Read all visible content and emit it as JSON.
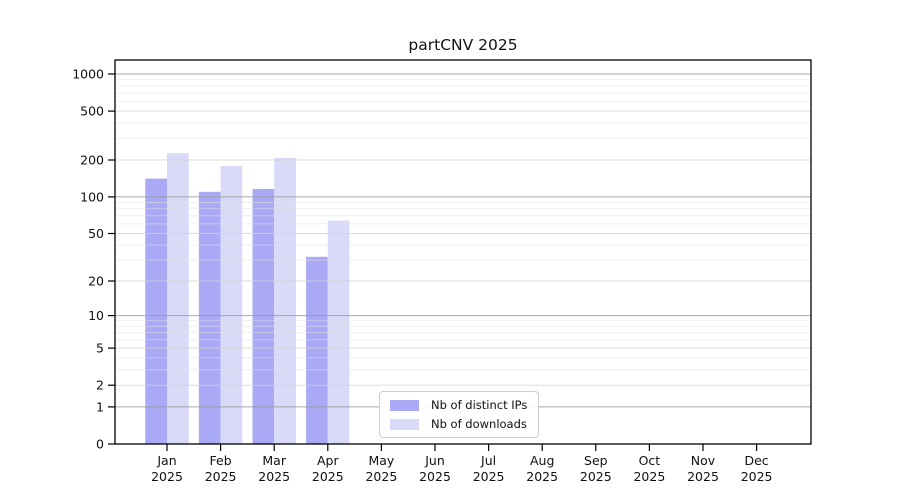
{
  "chart_data": {
    "type": "bar",
    "title": "partCNV 2025",
    "categories": [
      "Jan",
      "Feb",
      "Mar",
      "Apr",
      "May",
      "Jun",
      "Jul",
      "Aug",
      "Sep",
      "Oct",
      "Nov",
      "Dec"
    ],
    "x_year_label": "2025",
    "series": [
      {
        "name": "Nb of distinct IPs",
        "color": "#a9a9f6",
        "values": [
          141,
          110,
          116,
          32,
          null,
          null,
          null,
          null,
          null,
          null,
          null,
          null
        ]
      },
      {
        "name": "Nb of downloads",
        "color": "#d9d9f8",
        "values": [
          227,
          179,
          208,
          64,
          null,
          null,
          null,
          null,
          null,
          null,
          null,
          null
        ]
      }
    ],
    "y_ticks": [
      0,
      1,
      2,
      5,
      10,
      20,
      50,
      100,
      200,
      500,
      1000
    ],
    "y_scale": "log10(1+x)",
    "ylim": [
      0,
      1300
    ],
    "grid": true,
    "grid_colors": {
      "major": "#9a9a9a",
      "mid": "#d2d2d2",
      "minor": "#e2e2e2"
    },
    "axis_color": "#000000",
    "legend_position": "bottom-center",
    "background": "#ffffff"
  }
}
